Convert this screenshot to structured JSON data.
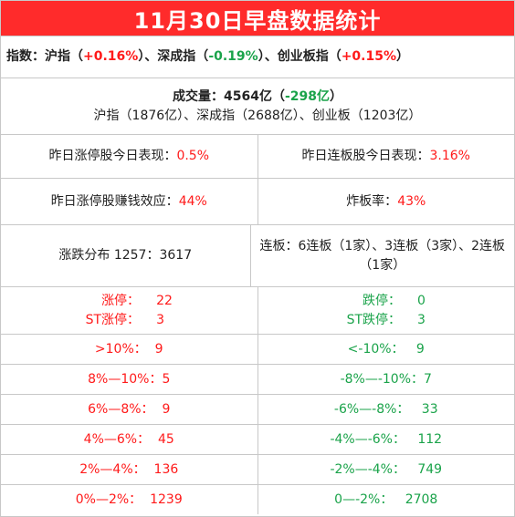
{
  "title": "11月30日早盘数据统计",
  "index_line": {
    "prefix": "指数：沪指（",
    "sh": "+0.16%",
    "mid1": "）、深成指（",
    "sz": "-0.19%",
    "mid2": "）、创业板指（",
    "cy": "+0.15%",
    "suffix": "）"
  },
  "volume": {
    "label": "成交量：4564亿（",
    "change": "-298亿",
    "suffix": "）",
    "detail": "沪指（1876亿）、深成指（2688亿）、创业板（1203亿）"
  },
  "row3": {
    "left_label": "昨日涨停股今日表现：",
    "left_value": "0.5%",
    "right_label": "昨日连板股今日表现：",
    "right_value": "3.16%"
  },
  "row4": {
    "left_label": "昨日涨停股赚钱效应：",
    "left_value": "44%",
    "right_label": "炸板率：",
    "right_value": "43%"
  },
  "row5": {
    "left": "涨跌分布 1257：3617",
    "right": "连板：6连板（1家）、3连板（3家）、2连板（1家）"
  },
  "limits": {
    "up_label": "涨停：",
    "up_value": "22",
    "st_up_label": "ST涨停：",
    "st_up_value": "3",
    "down_label": "跌停：",
    "down_value": "0",
    "st_down_label": "ST跌停：",
    "st_down_value": "3"
  },
  "distribution": [
    {
      "up_label": ">10%：",
      "up_value": "9",
      "down_label": "<-10%：",
      "down_value": "9"
    },
    {
      "up_label": "8%—10%：",
      "up_value": "5",
      "down_label": "-8%—-10%：",
      "down_value": "7"
    },
    {
      "up_label": "6%—8%：",
      "up_value": "9",
      "down_label": "-6%—-8%：",
      "down_value": "33"
    },
    {
      "up_label": "4%—6%：",
      "up_value": "45",
      "down_label": "-4%—-6%：",
      "down_value": "112"
    },
    {
      "up_label": "2%—4%：",
      "up_value": "136",
      "down_label": "-2%—-4%：",
      "down_value": "749"
    },
    {
      "up_label": "0%—2%：",
      "up_value": "1239",
      "down_label": "0—-2%：",
      "down_value": "2708"
    }
  ],
  "colors": {
    "title_bg": "#ff2b2b",
    "up": "#ff1a1a",
    "down": "#1aa34a",
    "grid": "#c8c8c8"
  }
}
